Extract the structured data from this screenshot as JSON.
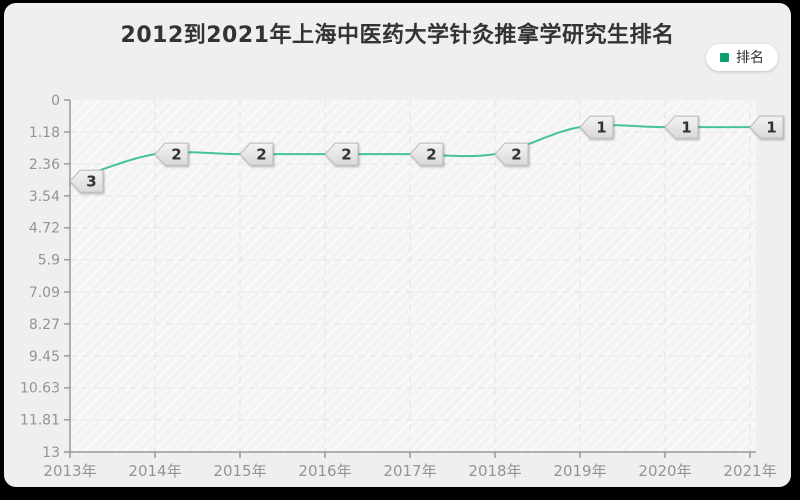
{
  "window": {
    "background": "#efefef",
    "frame_border_color": "#000000"
  },
  "header": {
    "title": "2012到2021年上海中医药大学针灸推拿学研究生排名",
    "title_color": "#333333"
  },
  "legend": {
    "label": "排名",
    "marker_color": "#0b9e6e",
    "background": "#ffffff",
    "text_color": "#333333",
    "position": "top-right"
  },
  "chart_data": {
    "type": "line",
    "title": "2012到2021年上海中医药大学针灸推拿学研究生排名",
    "categories": [
      "2013年",
      "2014年",
      "2015年",
      "2016年",
      "2017年",
      "2018年",
      "2019年",
      "2020年",
      "2021年"
    ],
    "series": [
      {
        "name": "排名",
        "values": [
          3,
          2,
          2,
          2,
          2,
          2,
          1,
          1,
          1
        ],
        "color": "#45c392"
      }
    ],
    "data_labels": [
      "3",
      "2",
      "2",
      "2",
      "2",
      "2",
      "1",
      "1",
      "1"
    ],
    "xlabel": "",
    "ylabel": "",
    "y_ticks": [
      "0",
      "1.18",
      "2.36",
      "3.54",
      "4.72",
      "5.9",
      "7.09",
      "8.27",
      "9.45",
      "10.63",
      "11.81",
      "13"
    ],
    "ylim": [
      0,
      13
    ],
    "y_axis_inverted": true,
    "grid": true,
    "smooth": true,
    "legend_position": "top-right",
    "colors": {
      "axis": "#999999",
      "tick_label": "#949494",
      "gridline": "#e3e3e3",
      "plot_hatch_base": "#f4f4f4",
      "plot_hatch_stripe": "#fbfbfb",
      "data_label_fill_top": "#f3f3f3",
      "data_label_fill_bottom": "#d9d9d9",
      "data_label_border": "#b9b9b9",
      "data_label_text": "#333333"
    }
  }
}
